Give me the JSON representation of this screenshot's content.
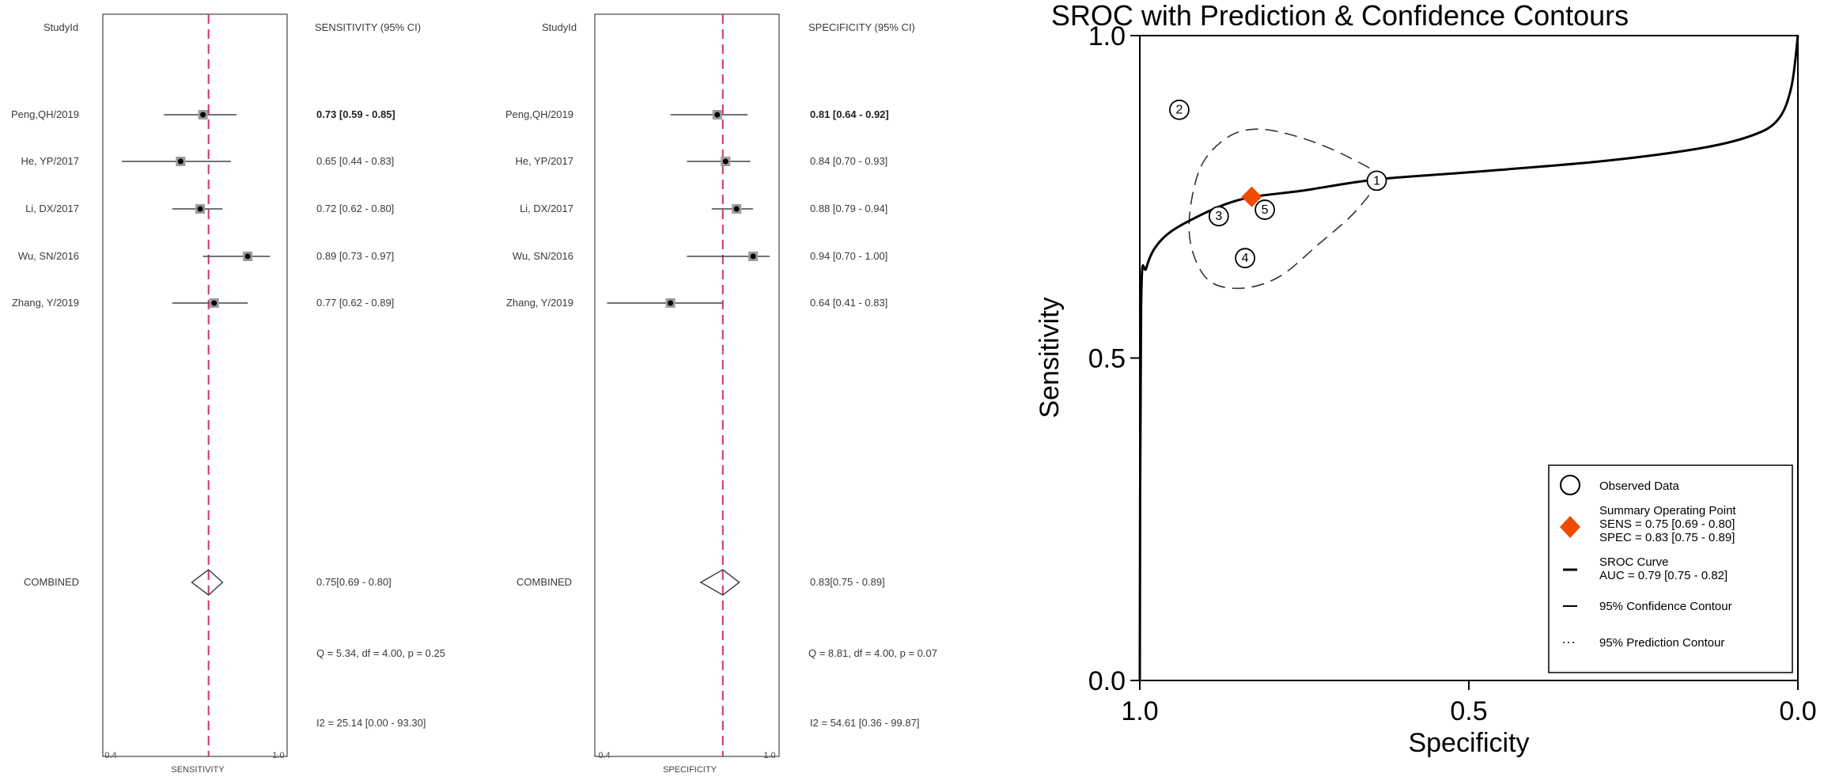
{
  "forest_sensitivity": {
    "col_study": "StudyId",
    "col_stat": "SENSITIVITY (95% CI)",
    "xlabel": "SENSITIVITY",
    "tick_labels": [
      "0.4",
      "1.0"
    ],
    "combined_label": "COMBINED",
    "combined_text": "0.75[0.69 - 0.80]",
    "q_text": "Q = 5.34, df = 4.00, p = 0.25",
    "i2_text": "I2 = 25.14 [0.00 - 93.30]"
  },
  "forest_specificity": {
    "col_study": "StudyId",
    "col_stat": "SPECIFICITY (95% CI)",
    "xlabel": "SPECIFICITY",
    "tick_labels": [
      "0.4",
      "1.0"
    ],
    "combined_label": "COMBINED",
    "combined_text": "0.83[0.75 - 0.89]",
    "q_text": "Q = 8.81, df = 4.00, p = 0.07",
    "i2_text": "I2 = 54.61 [0.36 - 99.87]"
  },
  "sroc": {
    "title": "SROC with Prediction & Confidence Contours",
    "xlabel": "Specificity",
    "ylabel": "Sensitivity",
    "x_ticks": [
      "1.0",
      "0.5",
      "0.0"
    ],
    "y_ticks": [
      "1.0",
      "0.5",
      "0.0"
    ],
    "legend": {
      "observed": "Observed Data",
      "summary_title": "Summary Operating Point",
      "summary_sens": "SENS = 0.75 [0.69 - 0.80]",
      "summary_spec": "SPEC = 0.83 [0.75 - 0.89]",
      "curve_title": "SROC Curve",
      "curve_auc": "AUC = 0.79 [0.75 - 0.82]",
      "confidence": "95% Confidence Contour",
      "prediction": "95% Prediction Contour"
    }
  },
  "chart_data": [
    {
      "type": "forest",
      "measure": "sensitivity",
      "x_range": [
        0.4,
        1.0
      ],
      "reference_line": 0.75,
      "studies": [
        {
          "label": "Peng,QH/2019",
          "estimate": 0.73,
          "lower": 0.59,
          "upper": 0.85,
          "text": "0.73 [0.59 - 0.85]",
          "emphasis": true
        },
        {
          "label": "He,  YP/2017",
          "estimate": 0.65,
          "lower": 0.44,
          "upper": 0.83,
          "text": "0.65 [0.44 - 0.83]",
          "emphasis": false
        },
        {
          "label": "Li,  DX/2017",
          "estimate": 0.72,
          "lower": 0.62,
          "upper": 0.8,
          "text": "0.72 [0.62 - 0.80]",
          "emphasis": false
        },
        {
          "label": "Wu,  SN/2016",
          "estimate": 0.89,
          "lower": 0.73,
          "upper": 0.97,
          "text": "0.89 [0.73 - 0.97]",
          "emphasis": false
        },
        {
          "label": "Zhang,  Y/2019",
          "estimate": 0.77,
          "lower": 0.62,
          "upper": 0.89,
          "text": "0.77 [0.62 - 0.89]",
          "emphasis": false
        }
      ],
      "combined": {
        "estimate": 0.75,
        "lower": 0.69,
        "upper": 0.8
      },
      "heterogeneity": {
        "Q": 5.34,
        "df": 4.0,
        "p": 0.25,
        "I2": 25.14,
        "I2_ci": [
          0.0,
          93.3
        ]
      }
    },
    {
      "type": "forest",
      "measure": "specificity",
      "x_range": [
        0.4,
        1.0
      ],
      "reference_line": 0.83,
      "studies": [
        {
          "label": "Peng,QH/2019",
          "estimate": 0.81,
          "lower": 0.64,
          "upper": 0.92,
          "text": "0.81 [0.64 - 0.92]",
          "emphasis": true
        },
        {
          "label": "He,  YP/2017",
          "estimate": 0.84,
          "lower": 0.7,
          "upper": 0.93,
          "text": "0.84 [0.70 - 0.93]",
          "emphasis": false
        },
        {
          "label": "Li,  DX/2017",
          "estimate": 0.88,
          "lower": 0.79,
          "upper": 0.94,
          "text": "0.88 [0.79 - 0.94]",
          "emphasis": false
        },
        {
          "label": "Wu,  SN/2016",
          "estimate": 0.94,
          "lower": 0.7,
          "upper": 1.0,
          "text": "0.94 [0.70 - 1.00]",
          "emphasis": false
        },
        {
          "label": "Zhang,  Y/2019",
          "estimate": 0.64,
          "lower": 0.41,
          "upper": 0.83,
          "text": "0.64 [0.41 - 0.83]",
          "emphasis": false
        }
      ],
      "combined": {
        "estimate": 0.83,
        "lower": 0.75,
        "upper": 0.89
      },
      "heterogeneity": {
        "Q": 8.81,
        "df": 4.0,
        "p": 0.07,
        "I2": 54.61,
        "I2_ci": [
          0.36,
          99.87
        ]
      }
    },
    {
      "type": "scatter",
      "name": "SROC",
      "x_axis": "specificity",
      "x_reversed": true,
      "x_range": [
        1.0,
        0.0
      ],
      "y_range": [
        0.0,
        1.0
      ],
      "observed_points": [
        {
          "label": "1",
          "spec": 0.64,
          "sens": 0.775
        },
        {
          "label": "2",
          "spec": 0.94,
          "sens": 0.885
        },
        {
          "label": "3",
          "spec": 0.88,
          "sens": 0.72
        },
        {
          "label": "4",
          "spec": 0.84,
          "sens": 0.655
        },
        {
          "label": "5",
          "spec": 0.81,
          "sens": 0.73
        }
      ],
      "summary_point": {
        "spec": 0.83,
        "sens": 0.75,
        "color": "#f24a00"
      },
      "sroc_curve": [
        [
          1.0,
          0.0
        ],
        [
          0.998,
          0.58
        ],
        [
          0.99,
          0.64
        ],
        [
          0.97,
          0.68
        ],
        [
          0.93,
          0.71
        ],
        [
          0.85,
          0.745
        ],
        [
          0.75,
          0.76
        ],
        [
          0.64,
          0.777
        ],
        [
          0.5,
          0.788
        ],
        [
          0.3,
          0.805
        ],
        [
          0.15,
          0.825
        ],
        [
          0.07,
          0.845
        ],
        [
          0.03,
          0.87
        ],
        [
          0.01,
          0.92
        ],
        [
          0.0,
          1.0
        ]
      ],
      "confidence_contour": [
        [
          0.64,
          0.78
        ],
        [
          0.67,
          0.73
        ],
        [
          0.73,
          0.675
        ],
        [
          0.79,
          0.625
        ],
        [
          0.85,
          0.608
        ],
        [
          0.9,
          0.625
        ],
        [
          0.925,
          0.695
        ],
        [
          0.91,
          0.79
        ],
        [
          0.87,
          0.84
        ],
        [
          0.82,
          0.855
        ],
        [
          0.75,
          0.84
        ],
        [
          0.68,
          0.81
        ]
      ],
      "grid": false,
      "legend_position": "bottom-right"
    }
  ]
}
